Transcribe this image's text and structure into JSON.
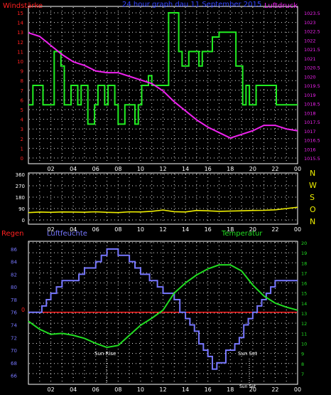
{
  "header": {
    "title": "24 hour graph dau   11 September 2015",
    "wind_label": "Windstärke",
    "pressure_label": "Luftdruck"
  },
  "compass": [
    "N",
    "W",
    "S",
    "O",
    "N"
  ],
  "bottom_labels": {
    "rain": "Regen",
    "humidity": "Luftfeuchte",
    "temperature": "Temperatur",
    "sunrise": "Sun Rise",
    "sunset": "Sun Set",
    "sunset_small": "Sun Set"
  },
  "colors": {
    "wind": "#22ee22",
    "pressure": "#ee22ee",
    "direction": "#eeee00",
    "humidity": "#7777ff",
    "temperature": "#22dd22",
    "rain": "#ff2020",
    "grid": "#ffffff",
    "title": "#3344ff"
  },
  "chart_data": [
    {
      "type": "line",
      "title": "24 hour graph dau   11 September 2015",
      "x_ticks": [
        "02",
        "04",
        "06",
        "08",
        "10",
        "12",
        "14",
        "16",
        "18",
        "20",
        "22",
        "00"
      ],
      "xlim": [
        0,
        24
      ],
      "y_left_label": "Windstärke",
      "y_left_ticks": [
        "0",
        "1",
        "2",
        "3",
        "4",
        "5",
        "6",
        "7",
        "8",
        "9",
        "10",
        "11",
        "12",
        "13",
        "14",
        "15"
      ],
      "ylim_left": [
        0,
        15
      ],
      "y_right_label": "Luftdruck",
      "y_right_ticks": [
        "1015.5",
        "1016",
        "1016.5",
        "1017",
        "1017.5",
        "1018",
        "1018.5",
        "1019",
        "1019.5",
        "1020",
        "1020.5",
        "1021",
        "1021.5",
        "1022",
        "1022.5",
        "1023",
        "1023.5"
      ],
      "ylim_right": [
        1015.5,
        1023.5
      ],
      "grid": true,
      "series": [
        {
          "name": "Windstärke",
          "step": true,
          "axis": "left",
          "x": [
            0,
            0.4,
            0.4,
            1.3,
            1.3,
            2.3,
            2.3,
            2.9,
            2.9,
            3.2,
            3.2,
            3.8,
            3.8,
            4.4,
            4.4,
            4.7,
            4.7,
            5.3,
            5.3,
            5.9,
            5.9,
            6.2,
            6.2,
            6.8,
            6.8,
            7.1,
            7.1,
            7.7,
            7.7,
            8.0,
            8.0,
            8.6,
            8.6,
            8.9,
            8.9,
            9.5,
            9.5,
            9.8,
            9.8,
            10.1,
            10.1,
            10.7,
            10.7,
            11.0,
            11.0,
            12.5,
            12.5,
            13.4,
            13.4,
            13.7,
            13.7,
            14.3,
            14.3,
            14.6,
            14.6,
            15.2,
            15.2,
            15.5,
            15.5,
            16.1,
            16.1,
            16.4,
            16.4,
            17.0,
            17.0,
            18.5,
            18.5,
            19.1,
            19.1,
            19.4,
            19.4,
            19.7,
            19.7,
            20.3,
            20.3,
            20.6,
            20.6,
            22.1,
            22.1,
            23.3,
            23.3,
            24
          ],
          "y": [
            5.5,
            5.5,
            7.5,
            7.5,
            5.5,
            5.5,
            11,
            11,
            9.5,
            9.5,
            5.5,
            5.5,
            7.5,
            7.5,
            5.5,
            5.5,
            7.5,
            7.5,
            3.5,
            3.5,
            5.5,
            5.5,
            7.5,
            7.5,
            5.5,
            5.5,
            7.5,
            7.5,
            5.5,
            5.5,
            3.5,
            3.5,
            5.5,
            5.5,
            5.5,
            5.5,
            3.5,
            3.5,
            5.5,
            5.5,
            7.5,
            7.5,
            8.5,
            8.5,
            7.5,
            7.5,
            15,
            15,
            11,
            11,
            9.5,
            9.5,
            11,
            11,
            11,
            11,
            9.5,
            9.5,
            11,
            11,
            11,
            11,
            12.5,
            12.5,
            13,
            13,
            9.5,
            9.5,
            5.5,
            5.5,
            7.5,
            7.5,
            5.5,
            5.5,
            7.5,
            7.5,
            7.5,
            7.5,
            5.5,
            5.5,
            5.5,
            5.5
          ]
        },
        {
          "name": "Luftdruck",
          "axis": "right",
          "x": [
            0,
            1,
            2,
            3,
            4,
            5,
            6,
            7,
            8,
            9,
            10,
            11,
            12,
            13,
            14,
            15,
            16,
            17,
            18,
            19,
            20,
            21,
            22,
            23,
            24
          ],
          "y": [
            1022.4,
            1022.2,
            1021.7,
            1021.2,
            1020.8,
            1020.6,
            1020.3,
            1020.2,
            1020.2,
            1020.0,
            1019.8,
            1019.6,
            1019.2,
            1018.6,
            1018.1,
            1017.6,
            1017.2,
            1016.9,
            1016.6,
            1016.8,
            1017.0,
            1017.3,
            1017.3,
            1017.1,
            1017.0
          ]
        }
      ]
    },
    {
      "type": "line",
      "x_ticks": [
        "02",
        "04",
        "06",
        "08",
        "10",
        "12",
        "14",
        "16",
        "18",
        "20",
        "22",
        "00"
      ],
      "xlim": [
        0,
        24
      ],
      "y_ticks": [
        "0",
        "90",
        "180",
        "270",
        "360"
      ],
      "ylim": [
        0,
        360
      ],
      "grid": true,
      "series": [
        {
          "name": "direction",
          "x": [
            0,
            1,
            2,
            3,
            4,
            5,
            6,
            7,
            8,
            9,
            10,
            11,
            12,
            13,
            14,
            15,
            16,
            17,
            18,
            19,
            20,
            21,
            22,
            23,
            24
          ],
          "y": [
            58,
            62,
            60,
            63,
            62,
            61,
            64,
            60,
            58,
            64,
            63,
            68,
            78,
            65,
            63,
            75,
            72,
            68,
            70,
            72,
            75,
            76,
            80,
            90,
            100
          ]
        }
      ]
    },
    {
      "type": "line",
      "x_ticks": [
        "02",
        "04",
        "06",
        "08",
        "10",
        "12",
        "14",
        "16",
        "18",
        "20",
        "22",
        "00"
      ],
      "xlim": [
        0,
        24
      ],
      "y_left_label": "Luftfeuchte",
      "y_left_ticks": [
        "66",
        "68",
        "70",
        "72",
        "74",
        "76",
        "78",
        "80",
        "82",
        "84",
        "86"
      ],
      "ylim_left": [
        65.5,
        87
      ],
      "y_right_label": "Temperatur",
      "y_right_ticks": [
        "7",
        "8",
        "9",
        "10",
        "11",
        "12",
        "13",
        "14",
        "15",
        "16",
        "17",
        "18",
        "19",
        "20"
      ],
      "ylim_right": [
        6.5,
        20
      ],
      "rain_label": "Regen",
      "rain_value": "0",
      "annotations": [
        "Sun Rise",
        "Sun Set",
        "Sun Set"
      ],
      "grid": true,
      "series": [
        {
          "name": "Luftfeuchte",
          "step": true,
          "axis": "left",
          "x": [
            0,
            1.2,
            1.2,
            1.6,
            1.6,
            2.0,
            2.0,
            2.5,
            2.5,
            3.0,
            3.0,
            4.0,
            4.0,
            4.5,
            4.5,
            5.0,
            5.0,
            6.0,
            6.0,
            6.5,
            6.5,
            7.0,
            7.0,
            7.5,
            7.5,
            8.0,
            8.0,
            9.0,
            9.0,
            9.5,
            9.5,
            10.0,
            10.0,
            10.8,
            10.8,
            11.5,
            11.5,
            12.0,
            12.0,
            13.0,
            13.0,
            13.5,
            13.5,
            14.0,
            14.0,
            14.4,
            14.4,
            14.8,
            14.8,
            15.2,
            15.2,
            15.6,
            15.6,
            16.0,
            16.0,
            16.4,
            16.4,
            16.8,
            16.8,
            17.6,
            17.6,
            18.4,
            18.4,
            18.8,
            18.8,
            19.2,
            19.2,
            19.6,
            19.6,
            20.0,
            20.0,
            20.4,
            20.4,
            20.8,
            20.8,
            21.2,
            21.2,
            21.6,
            21.6,
            22.0,
            22.0,
            22.8,
            22.8,
            24
          ],
          "y": [
            76,
            76,
            77,
            77,
            78,
            78,
            79,
            79,
            80,
            80,
            81,
            81,
            81,
            81,
            82,
            82,
            83,
            83,
            84,
            84,
            85,
            85,
            86,
            86,
            86,
            86,
            85,
            85,
            84,
            84,
            83,
            83,
            82,
            82,
            81,
            81,
            80,
            80,
            79,
            79,
            78,
            78,
            76,
            76,
            75,
            75,
            74,
            74,
            73,
            73,
            71,
            71,
            70,
            70,
            69,
            69,
            67,
            67,
            68,
            68,
            70,
            70,
            71,
            71,
            72,
            72,
            74,
            74,
            75,
            75,
            76,
            76,
            77,
            77,
            78,
            78,
            79,
            79,
            80,
            80,
            81,
            81,
            81,
            81
          ]
        },
        {
          "name": "Temperatur",
          "axis": "right",
          "x": [
            0,
            1,
            2,
            3,
            4,
            5,
            6,
            7,
            8,
            9,
            10,
            11,
            12,
            13,
            14,
            15,
            16,
            17,
            18,
            19,
            20,
            21,
            22,
            23,
            24
          ],
          "y": [
            12.2,
            11.4,
            10.9,
            11.0,
            10.8,
            10.5,
            10.0,
            9.6,
            9.8,
            10.8,
            11.8,
            12.5,
            13.3,
            15.0,
            16.0,
            16.8,
            17.4,
            17.8,
            17.8,
            17.2,
            15.8,
            14.7,
            14.0,
            13.6,
            13.3
          ]
        }
      ]
    }
  ]
}
